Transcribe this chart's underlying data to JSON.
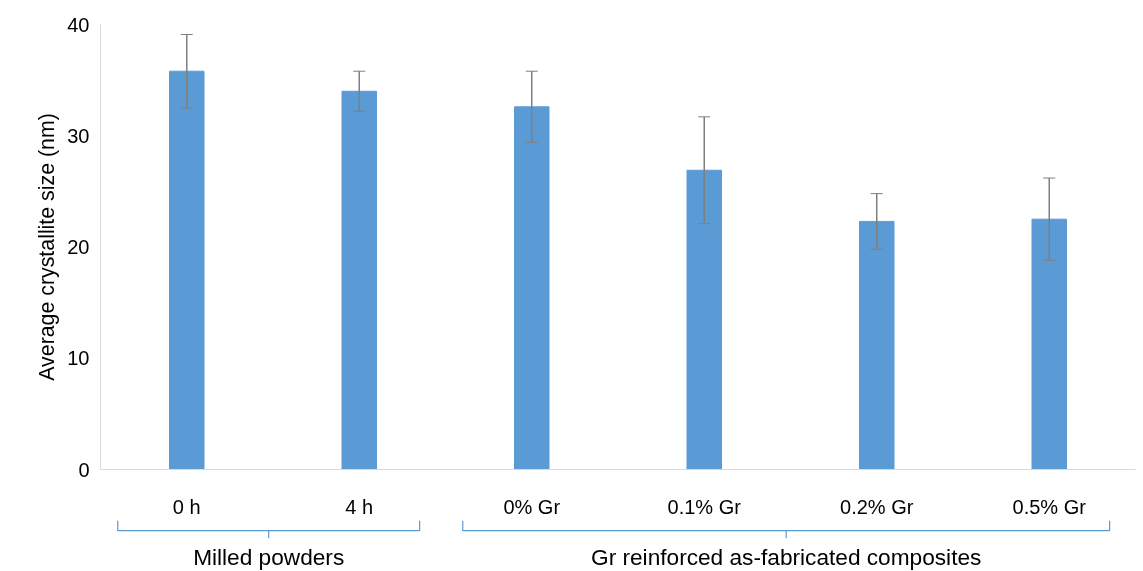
{
  "chart_data": {
    "type": "bar",
    "ylabel": "Average crystallite size (nm)",
    "categories": [
      "0 h",
      "4 h",
      "0% Gr",
      "0.1% Gr",
      "0.2% Gr",
      "0.5% Gr"
    ],
    "values": [
      35.8,
      34.0,
      32.6,
      26.9,
      22.3,
      22.5
    ],
    "errors": [
      3.3,
      1.8,
      3.2,
      4.8,
      2.5,
      3.7
    ],
    "color": "#5b9bd5",
    "ylim": [
      0,
      40
    ],
    "yticks": [
      0,
      10,
      20,
      30,
      40
    ],
    "grid": false,
    "annotations": [
      "Milled powders",
      "Gr reinforced as-fabricated composites"
    ]
  }
}
